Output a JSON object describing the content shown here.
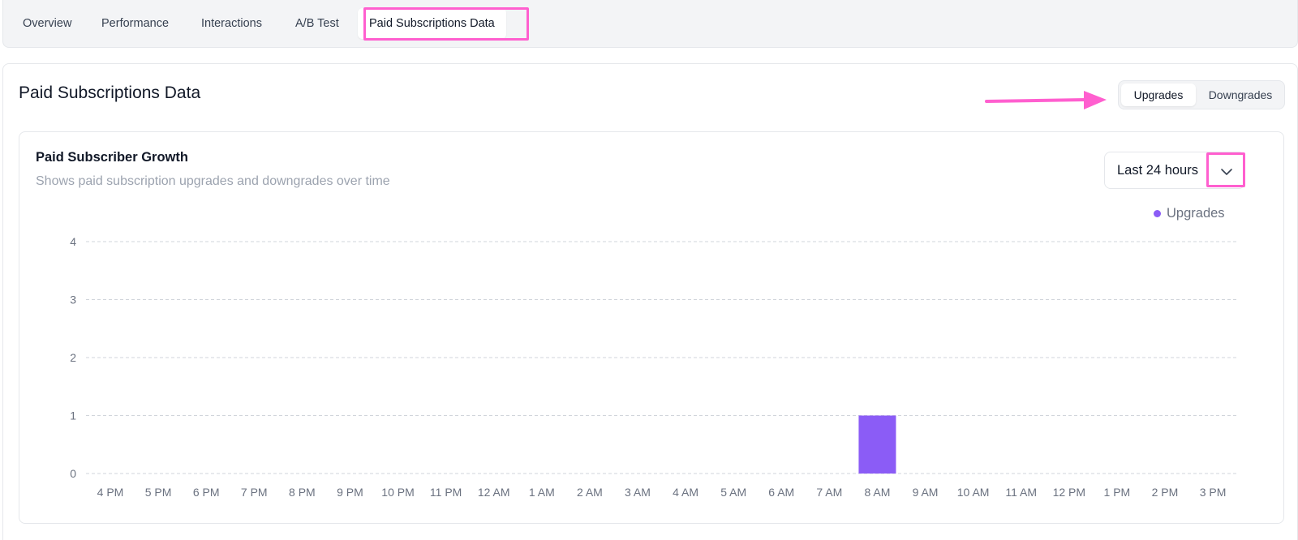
{
  "tabs": [
    {
      "label": "Overview"
    },
    {
      "label": "Performance"
    },
    {
      "label": "Interactions"
    },
    {
      "label": "A/B Test"
    },
    {
      "label": "Paid Subscriptions Data",
      "active": true
    }
  ],
  "panel": {
    "title": "Paid Subscriptions Data",
    "toggle": {
      "options": [
        "Upgrades",
        "Downgrades"
      ],
      "selected": "Upgrades"
    }
  },
  "card": {
    "title": "Paid Subscriber Growth",
    "subtitle": "Shows paid subscription upgrades and downgrades over time",
    "range_select": {
      "value": "Last 24 hours"
    },
    "legend": [
      {
        "label": "Upgrades",
        "color": "#8b5cf6"
      }
    ]
  },
  "annotation_color": "#ff5fcf",
  "chart_data": {
    "type": "bar",
    "categories": [
      "4 PM",
      "5 PM",
      "6 PM",
      "7 PM",
      "8 PM",
      "9 PM",
      "10 PM",
      "11 PM",
      "12 AM",
      "1 AM",
      "2 AM",
      "3 AM",
      "4 AM",
      "5 AM",
      "6 AM",
      "7 AM",
      "8 AM",
      "9 AM",
      "10 AM",
      "11 AM",
      "12 PM",
      "1 PM",
      "2 PM",
      "3 PM"
    ],
    "series": [
      {
        "name": "Upgrades",
        "color": "#8b5cf6",
        "values": [
          0,
          0,
          0,
          0,
          0,
          0,
          0,
          0,
          0,
          0,
          0,
          0,
          0,
          0,
          0,
          0,
          1,
          0,
          0,
          0,
          0,
          0,
          0,
          0
        ]
      }
    ],
    "yticks": [
      0,
      1,
      2,
      3,
      4
    ],
    "ylim": [
      0,
      4
    ],
    "grid": true,
    "legend_position": "top-right"
  }
}
